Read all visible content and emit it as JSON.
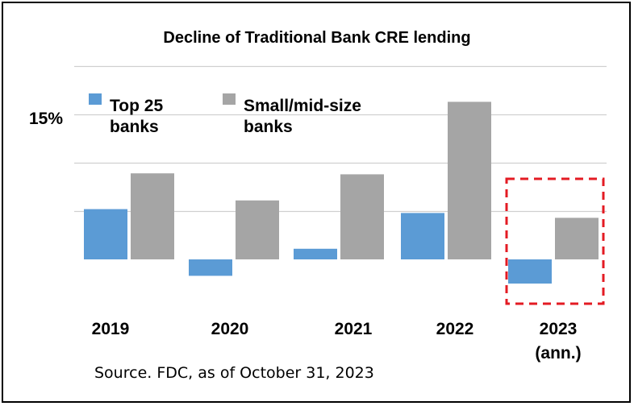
{
  "chart_data": {
    "type": "bar",
    "title": "Decline of Traditional Bank CRE lending",
    "categories": [
      "2019",
      "2020",
      "2021",
      "2022",
      "2023"
    ],
    "category_labels": [
      [
        "2019"
      ],
      [
        "2020"
      ],
      [
        "2021"
      ],
      [
        "2022"
      ],
      [
        "2023",
        "(ann.)"
      ]
    ],
    "series": [
      {
        "name": "Top 25 banks",
        "name_lines": [
          "Top 25",
          "banks"
        ],
        "color": "#5b9bd5",
        "values": [
          5.2,
          -1.7,
          1.1,
          4.8,
          -2.5
        ]
      },
      {
        "name": "Small/mid-size banks",
        "name_lines": [
          "Small/mid-size",
          "banks"
        ],
        "color": "#a5a5a5",
        "values": [
          8.9,
          6.1,
          8.8,
          16.3,
          4.3
        ]
      }
    ],
    "y_tick_labels": [
      {
        "value": 15,
        "label": "15%"
      }
    ],
    "ylim": [
      -5,
      18
    ],
    "gridlines": [
      5,
      10,
      15,
      20
    ],
    "grid": true,
    "legend": "top-left",
    "highlight": {
      "category": "2023",
      "style": "dashed-box",
      "color": "#e31b23"
    }
  },
  "source_note": "Source. FDC, as of October 31, 2023"
}
